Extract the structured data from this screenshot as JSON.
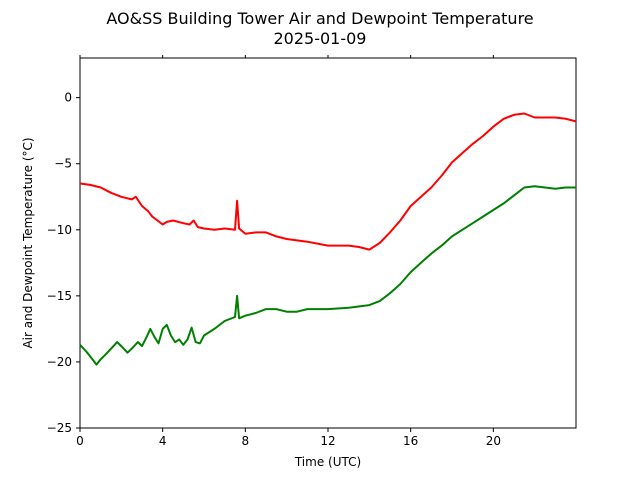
{
  "chart_data": {
    "type": "line",
    "title": "AO&SS Building Tower Air and Dewpoint Temperature",
    "subtitle": "2025-01-09",
    "xlabel": "Time (UTC)",
    "ylabel": "Air and Dewpoint Temperature (°C)",
    "xlim": [
      0,
      24
    ],
    "ylim": [
      -25,
      3
    ],
    "xticks": [
      0,
      4,
      8,
      12,
      16,
      20
    ],
    "yticks": [
      -25,
      -20,
      -15,
      -10,
      -5,
      0
    ],
    "grid": false,
    "legend": "none",
    "series": [
      {
        "color": "#ff0000",
        "x": [
          0,
          0.5,
          1,
          1.5,
          2,
          2.5,
          2.7,
          3,
          3.3,
          3.5,
          4,
          4.2,
          4.5,
          5,
          5.3,
          5.5,
          5.7,
          6,
          6.5,
          7,
          7.5,
          7.6,
          7.7,
          8,
          8.5,
          9,
          9.5,
          10,
          11,
          12,
          13,
          13.5,
          14,
          14.5,
          15,
          15.5,
          16,
          16.5,
          17,
          17.5,
          18,
          18.5,
          19,
          19.5,
          20,
          20.5,
          21,
          21.5,
          22,
          22.5,
          23,
          23.5,
          24
        ],
        "y": [
          -6.5,
          -6.6,
          -6.8,
          -7.2,
          -7.5,
          -7.7,
          -7.5,
          -8.2,
          -8.6,
          -9.0,
          -9.6,
          -9.4,
          -9.3,
          -9.5,
          -9.6,
          -9.3,
          -9.8,
          -9.9,
          -10.0,
          -9.9,
          -10.0,
          -7.8,
          -9.9,
          -10.3,
          -10.2,
          -10.2,
          -10.5,
          -10.7,
          -10.9,
          -11.2,
          -11.2,
          -11.3,
          -11.5,
          -11.0,
          -10.2,
          -9.3,
          -8.2,
          -7.5,
          -6.8,
          -5.9,
          -4.9,
          -4.2,
          -3.5,
          -2.9,
          -2.2,
          -1.6,
          -1.3,
          -1.2,
          -1.5,
          -1.5,
          -1.5,
          -1.6,
          -1.8
        ]
      },
      {
        "color": "#008000",
        "x": [
          0,
          0.3,
          0.6,
          0.8,
          1,
          1.2,
          1.5,
          1.8,
          2,
          2.3,
          2.5,
          2.8,
          3,
          3.2,
          3.4,
          3.6,
          3.8,
          4,
          4.2,
          4.4,
          4.6,
          4.8,
          5,
          5.2,
          5.4,
          5.6,
          5.8,
          6,
          6.5,
          7,
          7.5,
          7.6,
          7.7,
          8,
          8.5,
          9,
          9.5,
          10,
          10.5,
          11,
          12,
          13,
          14,
          14.5,
          15,
          15.5,
          16,
          16.5,
          17,
          17.5,
          18,
          18.5,
          19,
          19.5,
          20,
          20.5,
          21,
          21.5,
          22,
          22.5,
          23,
          23.5,
          24
        ],
        "y": [
          -18.7,
          -19.2,
          -19.8,
          -20.2,
          -19.8,
          -19.5,
          -19.0,
          -18.5,
          -18.8,
          -19.3,
          -19.0,
          -18.5,
          -18.8,
          -18.2,
          -17.5,
          -18.1,
          -18.6,
          -17.5,
          -17.2,
          -18.0,
          -18.5,
          -18.3,
          -18.7,
          -18.3,
          -17.4,
          -18.5,
          -18.6,
          -18.0,
          -17.5,
          -16.9,
          -16.6,
          -15.0,
          -16.7,
          -16.5,
          -16.3,
          -16.0,
          -16.0,
          -16.2,
          -16.2,
          -16.0,
          -16.0,
          -15.9,
          -15.7,
          -15.4,
          -14.8,
          -14.1,
          -13.2,
          -12.5,
          -11.8,
          -11.2,
          -10.5,
          -10.0,
          -9.5,
          -9.0,
          -8.5,
          -8.0,
          -7.4,
          -6.8,
          -6.7,
          -6.8,
          -6.9,
          -6.8,
          -6.8
        ]
      }
    ]
  }
}
